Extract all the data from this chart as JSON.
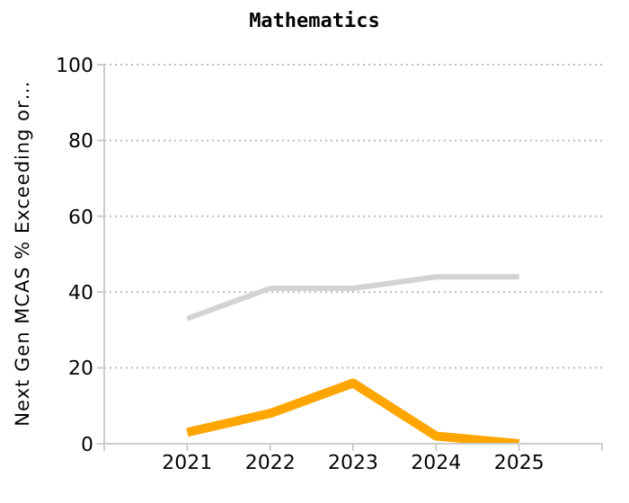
{
  "chart_data": {
    "type": "line",
    "title": "Mathematics",
    "ylabel": "Next Gen MCAS % Exceeding or…",
    "x": [
      2021,
      2022,
      2023,
      2024,
      2025
    ],
    "series": [
      {
        "color": "#d3d3d3",
        "values": [
          33,
          41,
          41,
          44,
          44
        ]
      },
      {
        "color": "#ffa500",
        "values": [
          3,
          8,
          16,
          2,
          0
        ]
      }
    ],
    "xlim": [
      2020,
      2026
    ],
    "xticks": [
      {
        "value": 2020,
        "label": null
      },
      2021,
      2022,
      2023,
      2024,
      2025,
      {
        "value": 2026,
        "label": null
      }
    ],
    "ylim": [
      0,
      100
    ],
    "yticks": [
      0,
      20,
      40,
      60,
      80,
      100
    ],
    "grid": "y",
    "legend": false,
    "marker": "none",
    "line_style": "solid"
  }
}
